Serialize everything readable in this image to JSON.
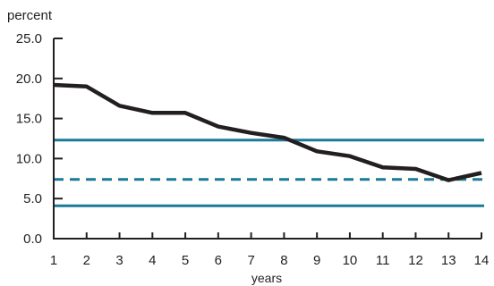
{
  "chart_data": {
    "type": "line",
    "ylabel": "percent",
    "xlabel": "years",
    "x": [
      1,
      2,
      3,
      4,
      5,
      6,
      7,
      8,
      9,
      10,
      11,
      12,
      13,
      14
    ],
    "xlim": [
      1,
      14
    ],
    "ylim": [
      0,
      25
    ],
    "y_ticks": [
      "0.0",
      "5.0",
      "10.0",
      "15.0",
      "20.0",
      "25.0"
    ],
    "x_ticks": [
      "1",
      "2",
      "3",
      "4",
      "5",
      "6",
      "7",
      "8",
      "9",
      "10",
      "11",
      "12",
      "13",
      "14"
    ],
    "grid": false,
    "series": [
      {
        "values": [
          19.2,
          19.0,
          16.6,
          15.7,
          15.7,
          14.0,
          13.2,
          12.6,
          10.9,
          10.3,
          8.9,
          8.7,
          7.3,
          8.2
        ],
        "color": "#231f20",
        "style": "solid"
      }
    ],
    "reference_lines": [
      {
        "value": 12.3,
        "color": "#1b7a96",
        "style": "solid"
      },
      {
        "value": 7.4,
        "color": "#1b7a96",
        "style": "dashed"
      },
      {
        "value": 4.1,
        "color": "#1b7a96",
        "style": "solid"
      }
    ]
  }
}
